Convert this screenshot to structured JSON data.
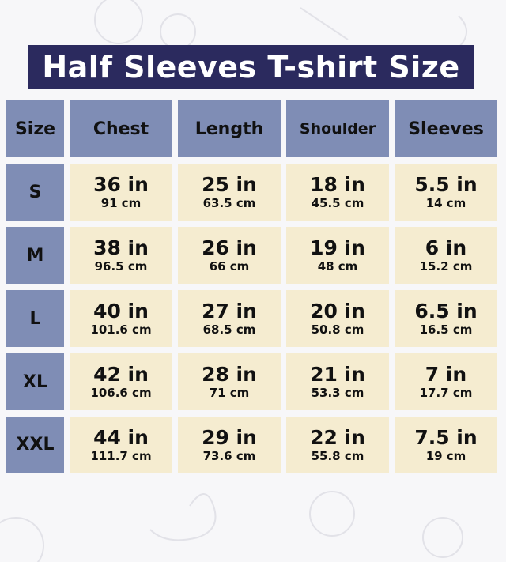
{
  "title": "Half Sleeves T-shirt Size",
  "colors": {
    "title_bg": "#2b2a5e",
    "header_bg": "#7f8db5",
    "cell_bg": "#f5ecd0",
    "background": "#f7f7f9"
  },
  "table": {
    "headers": [
      "Size",
      "Chest",
      "Length",
      "Shoulder",
      "Sleeves"
    ],
    "rows": [
      {
        "size": "S",
        "values": [
          {
            "in": "36 in",
            "cm": "91 cm"
          },
          {
            "in": "25 in",
            "cm": "63.5 cm"
          },
          {
            "in": "18 in",
            "cm": "45.5 cm"
          },
          {
            "in": "5.5 in",
            "cm": "14 cm"
          }
        ]
      },
      {
        "size": "M",
        "values": [
          {
            "in": "38 in",
            "cm": "96.5 cm"
          },
          {
            "in": "26 in",
            "cm": "66 cm"
          },
          {
            "in": "19 in",
            "cm": "48 cm"
          },
          {
            "in": "6 in",
            "cm": "15.2 cm"
          }
        ]
      },
      {
        "size": "L",
        "values": [
          {
            "in": "40 in",
            "cm": "101.6 cm"
          },
          {
            "in": "27 in",
            "cm": "68.5 cm"
          },
          {
            "in": "20 in",
            "cm": "50.8 cm"
          },
          {
            "in": "6.5 in",
            "cm": "16.5 cm"
          }
        ]
      },
      {
        "size": "XL",
        "values": [
          {
            "in": "42 in",
            "cm": "106.6 cm"
          },
          {
            "in": "28 in",
            "cm": "71 cm"
          },
          {
            "in": "21 in",
            "cm": "53.3 cm"
          },
          {
            "in": "7 in",
            "cm": "17.7 cm"
          }
        ]
      },
      {
        "size": "XXL",
        "values": [
          {
            "in": "44 in",
            "cm": "111.7 cm"
          },
          {
            "in": "29 in",
            "cm": "73.6 cm"
          },
          {
            "in": "22 in",
            "cm": "55.8 cm"
          },
          {
            "in": "7.5 in",
            "cm": "19 cm"
          }
        ]
      }
    ]
  }
}
